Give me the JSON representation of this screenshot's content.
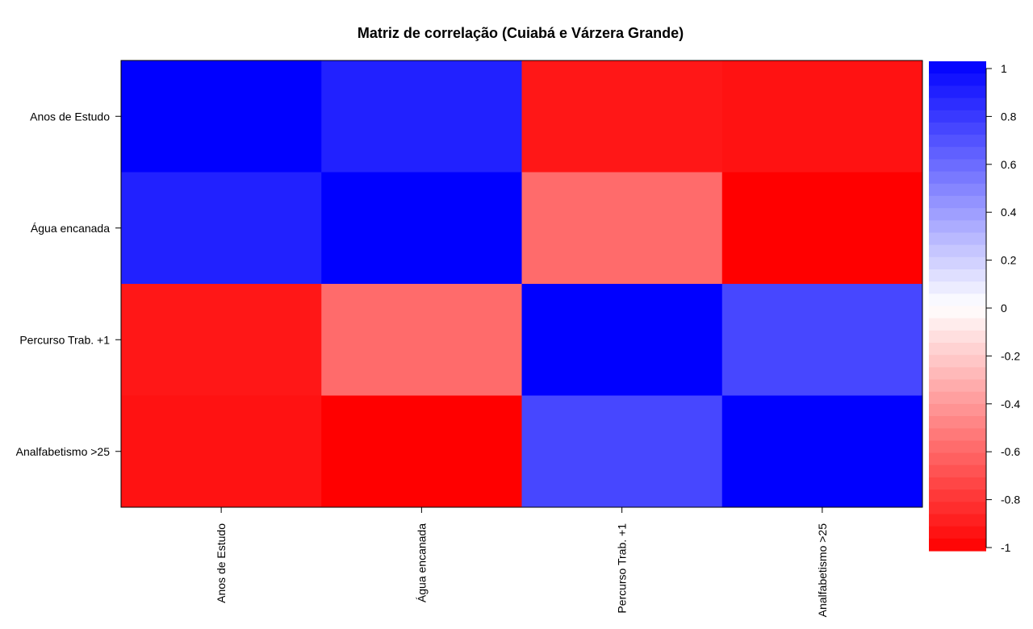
{
  "chart_data": {
    "type": "heatmap",
    "title": "Matriz de correlação (Cuiabá e Várzera Grande)",
    "variables": [
      "Anos de Estudo",
      "Água encanada",
      "Percurso Trab. +1",
      "Analfabetismo >25"
    ],
    "matrix": [
      [
        1.0,
        0.87,
        -0.91,
        -0.93
      ],
      [
        0.87,
        1.0,
        -0.58,
        -1.0
      ],
      [
        -0.91,
        -0.58,
        1.0,
        0.72
      ],
      [
        -0.93,
        -1.0,
        0.72,
        1.0
      ]
    ],
    "colorbar": {
      "min": -1,
      "max": 1,
      "ticks": [
        "1",
        "0.8",
        "0.6",
        "0.4",
        "0.2",
        "0",
        "-0.2",
        "-0.4",
        "-0.6",
        "-0.8",
        "-1"
      ],
      "low_color": "#ff0000",
      "mid_color": "#ffffff",
      "high_color": "#0000ff"
    },
    "grid": false
  }
}
